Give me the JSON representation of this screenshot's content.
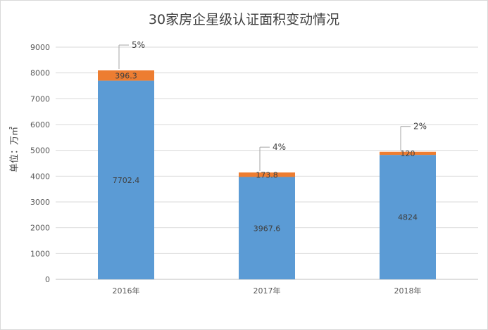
{
  "chart_data": {
    "type": "bar",
    "stacked": true,
    "title": "30家房企星级认证面积变动情况",
    "xlabel": "",
    "ylabel": "单位：万㎡",
    "ylim": [
      0,
      9000
    ],
    "yticks": [
      "0",
      "1000",
      "2000",
      "3000",
      "4000",
      "5000",
      "6000",
      "7000",
      "8000",
      "9000"
    ],
    "categories": [
      "2016年",
      "2017年",
      "2018年"
    ],
    "grid": true,
    "legend": "none",
    "series": [
      {
        "values": [
          7702.4,
          3967.6,
          4824
        ],
        "labels": [
          "7702.4",
          "3967.6",
          "4824"
        ],
        "color": "#5b9bd5"
      },
      {
        "values": [
          396.3,
          173.8,
          120
        ],
        "labels": [
          "396.3",
          "173.8",
          "120"
        ],
        "color": "#ed7d31"
      }
    ],
    "annotations": [
      "5%",
      "4%",
      "2%"
    ]
  }
}
